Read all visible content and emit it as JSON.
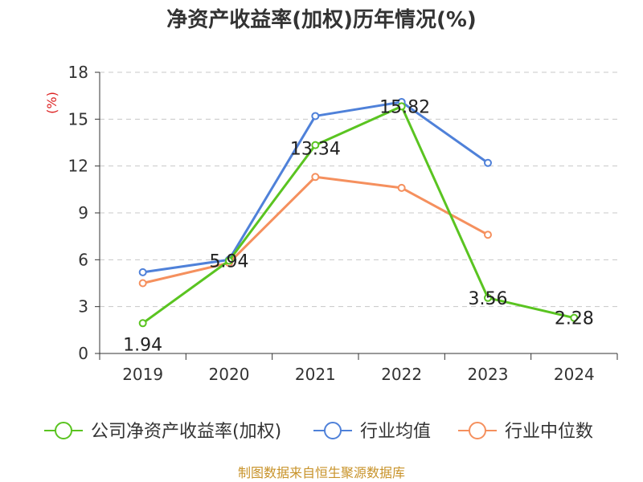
{
  "title": "净资产收益率(加权)历年情况(%)",
  "source": "制图数据来自恒生聚源数据库",
  "chart_data": {
    "type": "line",
    "title": "净资产收益率(加权)历年情况(%)",
    "ylabel": "(%)",
    "xlabel": "",
    "ylim": [
      0,
      18
    ],
    "yticks": [
      0,
      3,
      6,
      9,
      12,
      15,
      18
    ],
    "grid": true,
    "legend": "bottom",
    "categories": [
      "2019",
      "2020",
      "2021",
      "2022",
      "2023",
      "2024"
    ],
    "series": [
      {
        "name": "公司净资产收益率(加权)",
        "color": "#5ac421",
        "values": [
          1.94,
          5.94,
          13.34,
          15.82,
          3.56,
          2.28
        ],
        "labels": [
          "1.94",
          "5.94",
          "13.34",
          "15.82",
          "3.56",
          "2.28"
        ]
      },
      {
        "name": "行业均值",
        "color": "#4f81d9",
        "values": [
          5.2,
          6.0,
          15.2,
          16.1,
          12.2,
          null
        ]
      },
      {
        "name": "行业中位数",
        "color": "#f5905e",
        "values": [
          4.5,
          5.8,
          11.3,
          10.6,
          7.6,
          null
        ]
      }
    ]
  }
}
